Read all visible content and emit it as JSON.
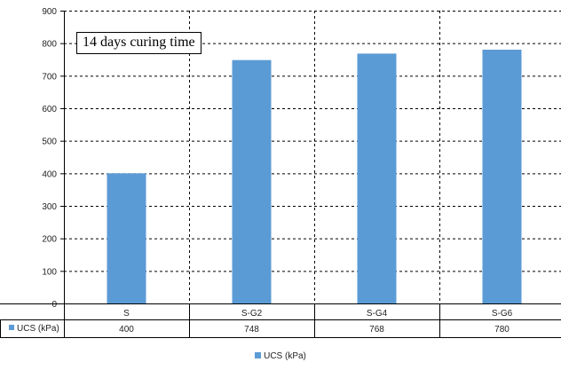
{
  "chart_data": {
    "type": "bar",
    "categories": [
      "S",
      "S-G2",
      "S-G4",
      "S-G6"
    ],
    "series": [
      {
        "name": "UCS (kPa)",
        "values": [
          400,
          748,
          768,
          780
        ],
        "color": "#5b9bd5"
      }
    ],
    "ylim": [
      0,
      900
    ],
    "yticks": [
      0,
      100,
      200,
      300,
      400,
      500,
      600,
      700,
      800,
      900
    ],
    "xlabel": "",
    "ylabel": "",
    "grid": "dashed",
    "data_table": true,
    "legend_position": "bottom",
    "annotation": "14 days curing time"
  }
}
